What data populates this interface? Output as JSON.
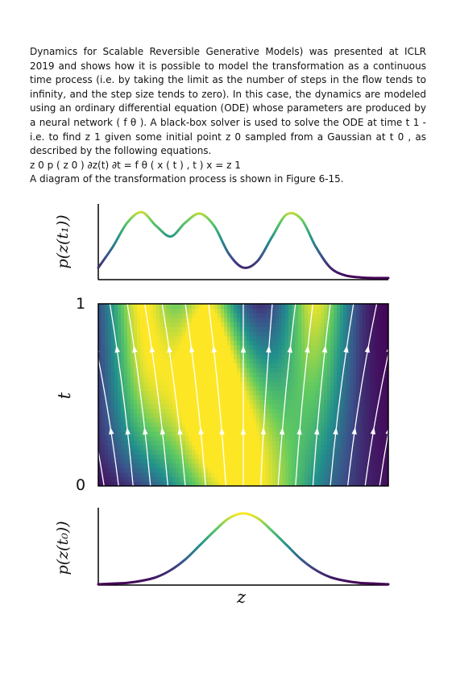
{
  "text": {
    "paragraph": "Dynamics for Scalable Reversible Generative Models) was presented at ICLR 2019 and shows how it is possible to model the transformation as a continuous time process (i.e. by taking the limit as the number of steps in the flow tends to infinity, and the step size tends to zero). In this case, the dynamics are modeled using an ordinary differential equation (ODE) whose parameters are produced by a neural network ( f θ ). A black-box solver is used to solve the ODE at time t 1 - i.e. to find z 1 given some initial point z 0 sampled from a Gaussian at t 0 , as described by the following equations.",
    "equation": "z 0  p ( z 0 ) ∂z(t) ∂t = f θ ( x ( t ) , t ) x = z 1",
    "caption": "A diagram of the transformation process is shown in Figure 6-15."
  },
  "figure": {
    "top_ylabel": "p(z(t₁))",
    "mid_ylabel": "t",
    "bottom_ylabel": "p(z(t₀))",
    "xlabel": "z",
    "tick_top": "1",
    "tick_bottom": "0",
    "colormap": [
      "#440154",
      "#3b528b",
      "#21918c",
      "#5ec962",
      "#fde725"
    ],
    "streamline_color": "#ffffff"
  },
  "chart_data": [
    {
      "type": "line",
      "ylabel": "p(z(t₁))",
      "x": [
        0,
        0.05,
        0.1,
        0.15,
        0.2,
        0.25,
        0.3,
        0.35,
        0.4,
        0.45,
        0.5,
        0.55,
        0.6,
        0.65,
        0.7,
        0.75,
        0.8,
        0.85,
        0.9,
        0.95,
        1
      ],
      "y": [
        0.15,
        0.45,
        0.8,
        0.95,
        0.75,
        0.6,
        0.8,
        0.93,
        0.75,
        0.35,
        0.15,
        0.25,
        0.6,
        0.92,
        0.85,
        0.45,
        0.15,
        0.04,
        0.01,
        0.0,
        0.0
      ]
    },
    {
      "type": "heatmap",
      "xlabel": "",
      "ylabel": "t",
      "ylim": [
        0,
        1
      ]
    },
    {
      "type": "line",
      "ylabel": "p(z(t₀))",
      "xlabel": "z",
      "x": [
        0,
        0.05,
        0.1,
        0.15,
        0.2,
        0.25,
        0.3,
        0.35,
        0.4,
        0.45,
        0.5,
        0.55,
        0.6,
        0.65,
        0.7,
        0.75,
        0.8,
        0.85,
        0.9,
        0.95,
        1
      ],
      "y": [
        0.0,
        0.01,
        0.02,
        0.05,
        0.1,
        0.2,
        0.35,
        0.55,
        0.75,
        0.93,
        1.0,
        0.93,
        0.75,
        0.55,
        0.35,
        0.2,
        0.1,
        0.05,
        0.02,
        0.01,
        0.0
      ]
    }
  ]
}
